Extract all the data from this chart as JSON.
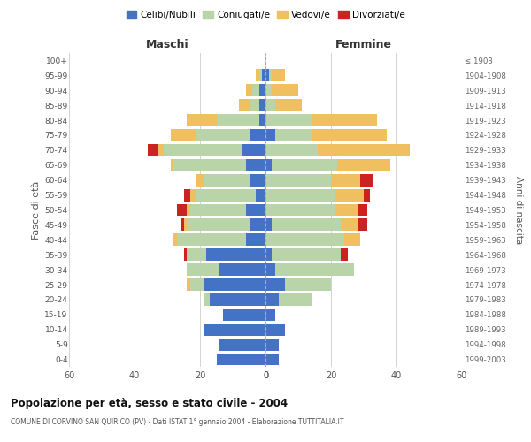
{
  "age_groups": [
    "0-4",
    "5-9",
    "10-14",
    "15-19",
    "20-24",
    "25-29",
    "30-34",
    "35-39",
    "40-44",
    "45-49",
    "50-54",
    "55-59",
    "60-64",
    "65-69",
    "70-74",
    "75-79",
    "80-84",
    "85-89",
    "90-94",
    "95-99",
    "100+"
  ],
  "birth_years": [
    "1999-2003",
    "1994-1998",
    "1989-1993",
    "1984-1988",
    "1979-1983",
    "1974-1978",
    "1969-1973",
    "1964-1968",
    "1959-1963",
    "1954-1958",
    "1949-1953",
    "1944-1948",
    "1939-1943",
    "1934-1938",
    "1929-1933",
    "1924-1928",
    "1919-1923",
    "1914-1918",
    "1909-1913",
    "1904-1908",
    "≤ 1903"
  ],
  "male_celibi": [
    15,
    14,
    19,
    13,
    17,
    19,
    14,
    18,
    6,
    5,
    6,
    3,
    5,
    6,
    7,
    5,
    2,
    2,
    2,
    1,
    0
  ],
  "male_coniugati": [
    0,
    0,
    0,
    0,
    2,
    4,
    10,
    6,
    21,
    19,
    17,
    18,
    14,
    22,
    24,
    16,
    13,
    3,
    2,
    1,
    0
  ],
  "male_vedovi": [
    0,
    0,
    0,
    0,
    0,
    1,
    0,
    0,
    1,
    1,
    1,
    2,
    2,
    1,
    2,
    8,
    9,
    3,
    2,
    1,
    0
  ],
  "male_divorziati": [
    0,
    0,
    0,
    0,
    0,
    0,
    0,
    1,
    0,
    1,
    3,
    2,
    0,
    0,
    3,
    0,
    0,
    0,
    0,
    0,
    0
  ],
  "female_celibi": [
    4,
    4,
    6,
    3,
    4,
    6,
    3,
    2,
    0,
    2,
    0,
    0,
    0,
    2,
    0,
    3,
    0,
    0,
    0,
    1,
    0
  ],
  "female_coniugati": [
    0,
    0,
    0,
    0,
    10,
    14,
    24,
    21,
    24,
    21,
    21,
    21,
    20,
    20,
    16,
    11,
    14,
    3,
    2,
    1,
    0
  ],
  "female_vedovi": [
    0,
    0,
    0,
    0,
    0,
    0,
    0,
    0,
    5,
    5,
    7,
    9,
    9,
    16,
    28,
    23,
    20,
    8,
    8,
    4,
    0
  ],
  "female_divorziati": [
    0,
    0,
    0,
    0,
    0,
    0,
    0,
    2,
    0,
    3,
    3,
    2,
    4,
    0,
    0,
    0,
    0,
    0,
    0,
    0,
    0
  ],
  "colors": {
    "celibi": "#4472C4",
    "coniugati": "#b8d4a8",
    "vedovi": "#f0c060",
    "divorziati": "#cc2222"
  },
  "xlim": 60,
  "title_main": "Popolazione per età, sesso e stato civile - 2004",
  "title_sub": "COMUNE DI CORVINO SAN QUIRICO (PV) - Dati ISTAT 1° gennaio 2004 - Elaborazione TUTTITALIA.IT",
  "ylabel_left": "Fasce di età",
  "ylabel_right": "Anni di nascita",
  "label_maschi": "Maschi",
  "label_femmine": "Femmine",
  "legend_labels": [
    "Celibi/Nubili",
    "Coniugati/e",
    "Vedovi/e",
    "Divorziati/e"
  ],
  "background_color": "#ffffff",
  "grid_color": "#cccccc",
  "xticks_male": [
    60,
    40,
    20,
    0
  ],
  "xticks_female": [
    0,
    20,
    40,
    60
  ]
}
